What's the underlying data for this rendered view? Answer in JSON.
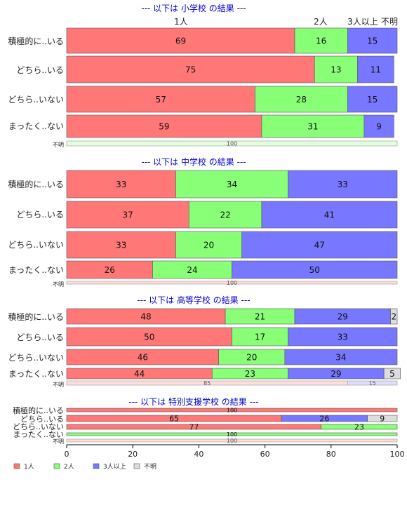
{
  "chart_data": {
    "type": "bar",
    "orientation": "horizontal",
    "stacked": "percent",
    "xlim": [
      0,
      100
    ],
    "x_ticks": [
      "0",
      "20",
      "40",
      "60",
      "80",
      "100"
    ],
    "colors": {
      "1人": "#ff7777",
      "2人": "#88ff77",
      "3人以上": "#7777ff",
      "不明": "#dddddd"
    },
    "legend": {
      "position": "bottom-left",
      "items": [
        {
          "label": "1人",
          "color": "#ff7777"
        },
        {
          "label": "2人",
          "color": "#88ff77"
        },
        {
          "label": "3人以上",
          "color": "#7777ff"
        },
        {
          "label": "不明",
          "color": "#dddddd"
        }
      ]
    },
    "header_labels": [
      "1人",
      "2人",
      "3人以上",
      "不明"
    ],
    "panels": [
      {
        "title": "--- 以下は 小学校 の結果 ---",
        "rows": [
          {
            "label": "積極的に..いる",
            "values": [
              69,
              16,
              15,
              0
            ]
          },
          {
            "label": "どちら..いる",
            "values": [
              75,
              13,
              11,
              0
            ]
          },
          {
            "label": "どちら..いない",
            "values": [
              57,
              28,
              15,
              0
            ]
          },
          {
            "label": "まったく..ない",
            "values": [
              59,
              31,
              9,
              0
            ]
          },
          {
            "label": "不明",
            "values": [
              0,
              100,
              0,
              0
            ]
          }
        ]
      },
      {
        "title": "--- 以下は 中学校 の結果 ---",
        "rows": [
          {
            "label": "積極的に..いる",
            "values": [
              33,
              34,
              33,
              0
            ]
          },
          {
            "label": "どちら..いる",
            "values": [
              37,
              22,
              41,
              0
            ]
          },
          {
            "label": "どちら..いない",
            "values": [
              33,
              20,
              47,
              0
            ]
          },
          {
            "label": "まったく..ない",
            "values": [
              26,
              24,
              50,
              0
            ]
          },
          {
            "label": "不明",
            "values": [
              100,
              0,
              0,
              0
            ]
          }
        ]
      },
      {
        "title": "--- 以下は 高等学校 の結果 ---",
        "rows": [
          {
            "label": "積極的に..いる",
            "values": [
              48,
              21,
              29,
              2
            ]
          },
          {
            "label": "どちら..いる",
            "values": [
              50,
              17,
              33,
              0
            ]
          },
          {
            "label": "どちら..いない",
            "values": [
              46,
              20,
              34,
              0
            ]
          },
          {
            "label": "まったく..ない",
            "values": [
              44,
              23,
              29,
              5
            ]
          },
          {
            "label": "不明",
            "values": [
              85,
              0,
              15,
              0
            ]
          }
        ]
      },
      {
        "title": "--- 以下は 特別支援学校 の結果 ---",
        "rows": [
          {
            "label": "積極的に..いる",
            "values": [
              100,
              0,
              0,
              0
            ]
          },
          {
            "label": "どちら..いる",
            "values": [
              65,
              0,
              26,
              9
            ]
          },
          {
            "label": "どちら..いない",
            "values": [
              77,
              23,
              0,
              0
            ]
          },
          {
            "label": "まったく..ない",
            "values": [
              0,
              100,
              0,
              0
            ]
          },
          {
            "label": "不明",
            "values": [
              100,
              0,
              0,
              0
            ]
          }
        ]
      }
    ]
  }
}
